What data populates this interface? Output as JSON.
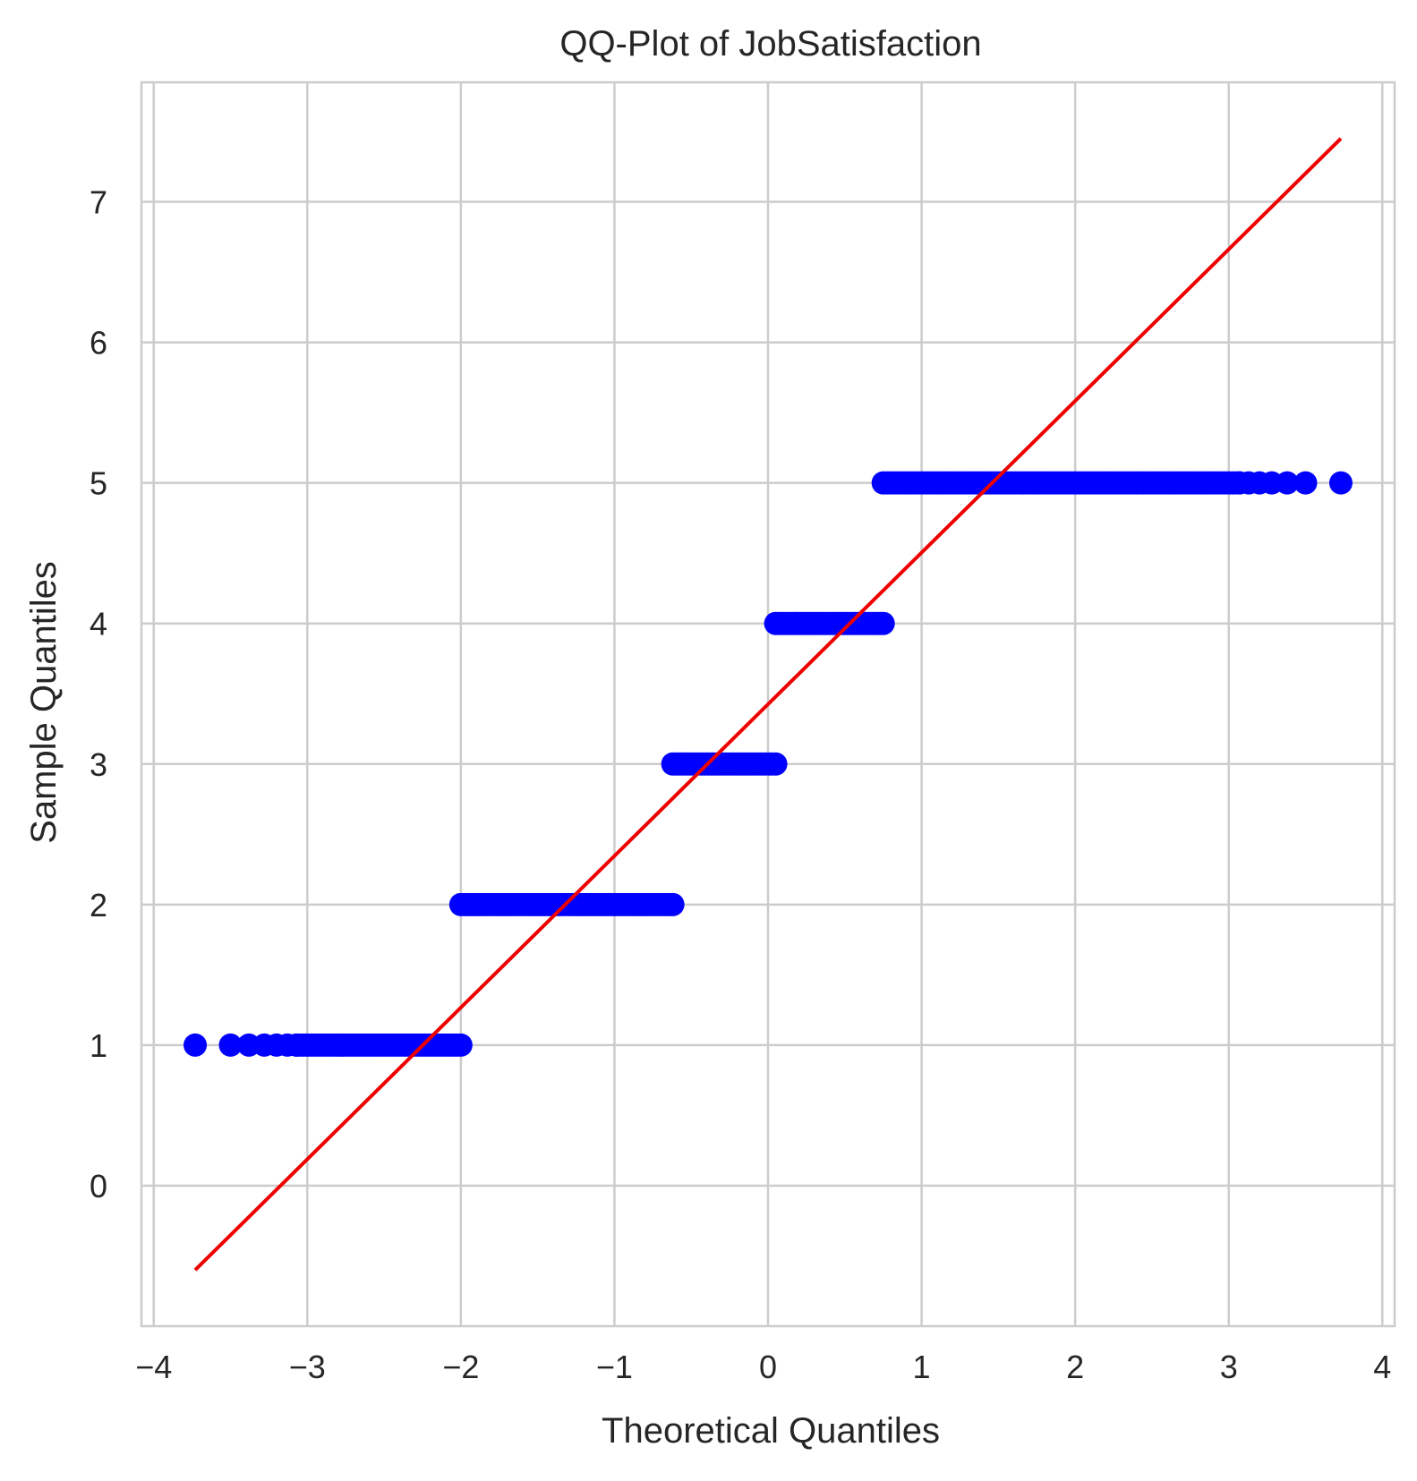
{
  "chart_data": {
    "type": "scatter",
    "title": "QQ-Plot of JobSatisfaction",
    "xlabel": "Theoretical Quantiles",
    "ylabel": "Sample Quantiles",
    "xlim": [
      -4.08,
      4.08
    ],
    "ylim": [
      -1.0,
      7.85
    ],
    "xticks": [
      -4,
      -3,
      -2,
      -1,
      0,
      1,
      2,
      3,
      4
    ],
    "xtick_labels": [
      "−4",
      "−3",
      "−2",
      "−1",
      "0",
      "1",
      "2",
      "3",
      "4"
    ],
    "yticks": [
      0,
      1,
      2,
      3,
      4,
      5,
      6,
      7
    ],
    "ytick_labels": [
      "0",
      "1",
      "2",
      "3",
      "4",
      "5",
      "6",
      "7"
    ],
    "grid": true,
    "series": [
      {
        "kind": "points",
        "color": "#0000ff",
        "levels": [
          {
            "y": 1,
            "x_min": -3.73,
            "x_max": -2.0,
            "isolated_x": [
              -3.73,
              -3.5,
              -3.38,
              -3.28,
              -3.2,
              -3.13,
              -3.07
            ]
          },
          {
            "y": 2,
            "x_min": -2.0,
            "x_max": -0.62,
            "isolated_x": []
          },
          {
            "y": 3,
            "x_min": -0.62,
            "x_max": 0.05,
            "isolated_x": []
          },
          {
            "y": 4,
            "x_min": 0.05,
            "x_max": 0.75,
            "isolated_x": []
          },
          {
            "y": 5,
            "x_min": 0.75,
            "x_max": 3.73,
            "isolated_x": [
              3.73,
              3.5,
              3.38,
              3.28,
              3.2,
              3.13,
              3.07
            ]
          }
        ]
      },
      {
        "kind": "reference-line",
        "color": "#ee0000",
        "x": [
          -3.73,
          3.73
        ],
        "y": [
          -0.6,
          7.45
        ]
      }
    ]
  }
}
